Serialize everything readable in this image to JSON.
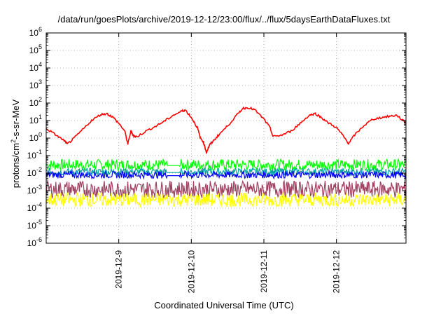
{
  "title": "/data/run/goesPlots/archive/2019-12-12/23:00/flux/../flux/5daysEarthDataFluxes.txt",
  "xlabel": "Coordinated Universal Time (UTC)",
  "ylabel": {
    "pre": "protons/cm",
    "sup": "2",
    "post": "-s-sr-MeV"
  },
  "chart_data": {
    "type": "line",
    "title": "/data/run/goesPlots/archive/2019-12-12/23:00/flux/../flux/5daysEarthDataFluxes.txt",
    "xlabel": "Coordinated Universal Time (UTC)",
    "ylabel": "protons/cm2-s-sr-MeV",
    "yscale": "log",
    "ylim": [
      1e-06,
      1000000.0
    ],
    "xlim": [
      "2019-12-08 00:00",
      "2019-12-12 23:00"
    ],
    "grid": true,
    "x_ticks": [
      "2019-12-9",
      "2019-12-10",
      "2019-12-11",
      "2019-12-12"
    ],
    "y_ticks": [
      {
        "base": "10",
        "exp": "-6"
      },
      {
        "base": "10",
        "exp": "-5"
      },
      {
        "base": "10",
        "exp": "-4"
      },
      {
        "base": "10",
        "exp": "-3"
      },
      {
        "base": "10",
        "exp": "-2"
      },
      {
        "base": "10",
        "exp": "-1"
      },
      {
        "base": "10",
        "exp": "0"
      },
      {
        "base": "10",
        "exp": "1"
      },
      {
        "base": "10",
        "exp": "2"
      },
      {
        "base": "10",
        "exp": "3"
      },
      {
        "base": "10",
        "exp": "4"
      },
      {
        "base": "10",
        "exp": "5"
      },
      {
        "base": "10",
        "exp": "6"
      }
    ],
    "series": [
      {
        "color": "#ff0000",
        "points": [
          [
            "2019-12-08 00:00",
            3.5
          ],
          [
            "2019-12-08 03:00",
            1.6
          ],
          [
            "2019-12-08 06:00",
            0.7
          ],
          [
            "2019-12-08 07:00",
            0.45
          ],
          [
            "2019-12-08 09:00",
            0.9
          ],
          [
            "2019-12-08 12:00",
            3
          ],
          [
            "2019-12-08 15:00",
            10
          ],
          [
            "2019-12-08 18:00",
            22
          ],
          [
            "2019-12-08 20:00",
            25
          ],
          [
            "2019-12-08 22:00",
            16
          ],
          [
            "2019-12-09 00:00",
            7
          ],
          [
            "2019-12-09 02:00",
            2.5
          ],
          [
            "2019-12-09 03:00",
            0.45
          ],
          [
            "2019-12-09 04:00",
            2.5
          ],
          [
            "2019-12-09 05:00",
            1.3
          ],
          [
            "2019-12-09 06:00",
            1.2
          ],
          [
            "2019-12-09 09:00",
            2.5
          ],
          [
            "2019-12-09 12:00",
            4.5
          ],
          [
            "2019-12-09 15:00",
            9
          ],
          [
            "2019-12-09 18:00",
            20
          ],
          [
            "2019-12-09 21:00",
            35
          ],
          [
            "2019-12-09 22:00",
            40
          ],
          [
            "2019-12-10 00:00",
            15
          ],
          [
            "2019-12-10 02:00",
            4
          ],
          [
            "2019-12-10 03:00",
            1
          ],
          [
            "2019-12-10 04:00",
            0.6
          ],
          [
            "2019-12-10 05:00",
            0.15
          ],
          [
            "2019-12-10 06:00",
            0.4
          ],
          [
            "2019-12-10 07:00",
            0.6
          ],
          [
            "2019-12-10 09:00",
            1.5
          ],
          [
            "2019-12-10 12:00",
            5
          ],
          [
            "2019-12-10 15:00",
            20
          ],
          [
            "2019-12-10 17:00",
            50
          ],
          [
            "2019-12-10 19:00",
            55
          ],
          [
            "2019-12-10 21:00",
            40
          ],
          [
            "2019-12-11 00:00",
            12
          ],
          [
            "2019-12-11 02:00",
            4
          ],
          [
            "2019-12-11 03:00",
            1.2
          ],
          [
            "2019-12-11 06:00",
            1.5
          ],
          [
            "2019-12-11 09:00",
            2.5
          ],
          [
            "2019-12-11 12:00",
            7
          ],
          [
            "2019-12-11 15:00",
            20
          ],
          [
            "2019-12-11 17:00",
            25
          ],
          [
            "2019-12-11 19:00",
            15
          ],
          [
            "2019-12-11 21:00",
            8
          ],
          [
            "2019-12-12 00:00",
            4
          ],
          [
            "2019-12-12 02:00",
            1.5
          ],
          [
            "2019-12-12 04:00",
            0.5
          ],
          [
            "2019-12-12 06:00",
            1.5
          ],
          [
            "2019-12-12 09:00",
            5
          ],
          [
            "2019-12-12 12:00",
            12
          ],
          [
            "2019-12-12 15:00",
            15
          ],
          [
            "2019-12-12 18:00",
            18
          ],
          [
            "2019-12-12 20:00",
            20
          ],
          [
            "2019-12-12 23:00",
            7
          ]
        ]
      },
      {
        "color": "#00ff00",
        "base": 0.03,
        "spread": 0.08
      },
      {
        "color": "#00a0a0",
        "base": 0.012,
        "spread": 0.05
      },
      {
        "color": "#0000ff",
        "base": 0.008,
        "spread": 0.05
      },
      {
        "color": "#a04060",
        "base": 0.0012,
        "spread": 0.12
      },
      {
        "color": "#ffff00",
        "base": 0.0003,
        "spread": 0.1
      }
    ]
  }
}
